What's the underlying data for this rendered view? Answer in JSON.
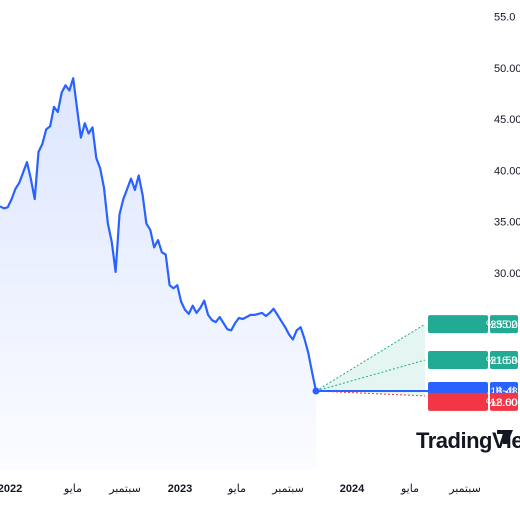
{
  "chart_data": {
    "type": "area",
    "y_axis": {
      "ticks": [
        "55.0",
        "50.00",
        "45.00",
        "40.00",
        "35.00",
        "30.00"
      ],
      "tick_values": [
        55,
        50,
        45,
        40,
        35,
        30
      ]
    },
    "x_axis": {
      "ticks": [
        {
          "label": "2022",
          "year": true
        },
        {
          "label": "مايو",
          "year": false
        },
        {
          "label": "سبتمبر",
          "year": false
        },
        {
          "label": "2023",
          "year": true
        },
        {
          "label": "مايو",
          "year": false
        },
        {
          "label": "سبتمبر",
          "year": false
        },
        {
          "label": "2024",
          "year": true
        },
        {
          "label": "مايو",
          "year": false
        },
        {
          "label": "سبتمبر",
          "year": false
        }
      ]
    },
    "series": [
      {
        "values": [
          36.5,
          36.3,
          36.4,
          37.2,
          38.2,
          38.8,
          39.8,
          40.8,
          39.2,
          37.2,
          41.8,
          42.6,
          44.0,
          44.3,
          46.2,
          45.7,
          47.6,
          48.3,
          47.8,
          49.0,
          46.0,
          43.2,
          44.6,
          43.6,
          44.2,
          41.2,
          40.2,
          38.3,
          34.8,
          33.0,
          30.1,
          35.7,
          37.2,
          38.2,
          39.2,
          38.1,
          39.5,
          37.6,
          34.8,
          34.2,
          32.5,
          33.2,
          32.0,
          31.8,
          28.8,
          28.5,
          28.8,
          27.2,
          26.4,
          26.0,
          26.8,
          26.1,
          26.6,
          27.3,
          25.9,
          25.4,
          25.2,
          25.7,
          25.1,
          24.5,
          24.4,
          25.1,
          25.6,
          25.5,
          25.7,
          25.9,
          25.9,
          26.0,
          26.1,
          25.8,
          26.1,
          26.5,
          25.9,
          25.3,
          24.7,
          24.0,
          23.5,
          24.4,
          24.7,
          23.6,
          22.2,
          20.3,
          18.48
        ]
      }
    ],
    "current_value": 18.48,
    "annotations": [
      {
        "id": "max",
        "label": "أقصى +35.28%",
        "value": "25.00",
        "numeric": 25.0,
        "color": "#22ab94"
      },
      {
        "id": "avg",
        "label": "متوسط +16.34%",
        "value": "21.50",
        "numeric": 21.5,
        "color": "#22ab94"
      },
      {
        "id": "cur",
        "label": "الاشتراك الحالي",
        "value": "18.48",
        "numeric": 18.48,
        "color": "#2962ff"
      },
      {
        "id": "min",
        "label": "أدنى -2.60%",
        "value": "18.00",
        "numeric": 18.0,
        "color": "#f23645"
      }
    ],
    "colors": {
      "line": "#2962ff",
      "fill": "#2962ff",
      "target_band": "#22ab94"
    }
  },
  "brand": {
    "name": "TradingView"
  }
}
